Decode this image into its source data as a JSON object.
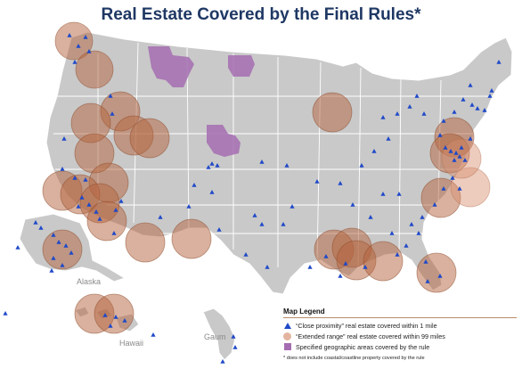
{
  "title": "Real Estate Covered by the Final Rules*",
  "colors": {
    "land": "#c9c9c9",
    "title": "#1f3864",
    "proximity_marker": "#1f49c8",
    "extended_range_circle": "#b4633e",
    "specified_area": "#a56db1"
  },
  "region_labels": {
    "alaska": "Alaska",
    "hawaii": "Hawaii",
    "guam": "Gaum"
  },
  "legend": {
    "title": "Map Legend",
    "items": [
      {
        "symbol": "triangle",
        "label": "“Close proximity” real estate covered within 1 mile"
      },
      {
        "symbol": "circle",
        "label": "“Extended range” real estate covered within 99 miles"
      },
      {
        "symbol": "square",
        "label": "Specified geographic areas covered by the rule"
      }
    ]
  },
  "footnote": "* does not include coastal/coastline property covered by the rule"
}
